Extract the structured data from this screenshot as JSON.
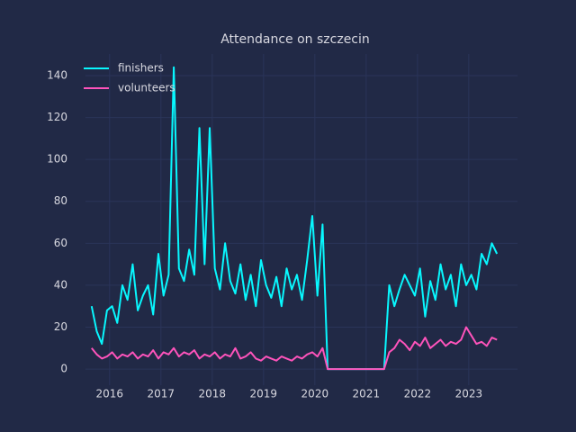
{
  "chart_data": {
    "type": "line",
    "title": "Attendance on szczecin",
    "x": [
      2015.65,
      2015.75,
      2015.85,
      2015.95,
      2016.05,
      2016.15,
      2016.25,
      2016.35,
      2016.45,
      2016.55,
      2016.65,
      2016.75,
      2016.85,
      2016.95,
      2017.05,
      2017.15,
      2017.25,
      2017.35,
      2017.45,
      2017.55,
      2017.65,
      2017.75,
      2017.85,
      2017.95,
      2018.05,
      2018.15,
      2018.25,
      2018.35,
      2018.45,
      2018.55,
      2018.65,
      2018.75,
      2018.85,
      2018.95,
      2019.05,
      2019.15,
      2019.25,
      2019.35,
      2019.45,
      2019.55,
      2019.65,
      2019.75,
      2019.85,
      2019.95,
      2020.05,
      2020.15,
      2020.25,
      2020.35,
      2020.45,
      2020.55,
      2020.65,
      2020.75,
      2020.85,
      2020.95,
      2021.05,
      2021.15,
      2021.25,
      2021.35,
      2021.45,
      2021.55,
      2021.65,
      2021.75,
      2021.85,
      2021.95,
      2022.05,
      2022.15,
      2022.25,
      2022.35,
      2022.45,
      2022.55,
      2022.65,
      2022.75,
      2022.85,
      2022.95,
      2023.05,
      2023.15,
      2023.25,
      2023.35,
      2023.45,
      2023.55
    ],
    "series": [
      {
        "name": "finishers",
        "color": "#08F7FE",
        "values": [
          30,
          18,
          12,
          28,
          30,
          22,
          40,
          33,
          50,
          28,
          35,
          40,
          26,
          55,
          35,
          45,
          144,
          48,
          42,
          57,
          45,
          115,
          50,
          115,
          48,
          38,
          60,
          42,
          36,
          50,
          33,
          45,
          30,
          52,
          40,
          34,
          44,
          30,
          48,
          38,
          45,
          33,
          52,
          73,
          35,
          69,
          0,
          0,
          0,
          0,
          0,
          0,
          0,
          0,
          0,
          0,
          0,
          0,
          40,
          30,
          38,
          45,
          40,
          35,
          48,
          25,
          42,
          33,
          50,
          38,
          45,
          30,
          50,
          40,
          45,
          38,
          55,
          50,
          60,
          55
        ]
      },
      {
        "name": "volunteers",
        "color": "#FE53BB",
        "values": [
          10,
          7,
          5,
          6,
          8,
          5,
          7,
          6,
          8,
          5,
          7,
          6,
          9,
          5,
          8,
          7,
          10,
          6,
          8,
          7,
          9,
          5,
          7,
          6,
          8,
          5,
          7,
          6,
          10,
          5,
          6,
          8,
          5,
          4,
          6,
          5,
          4,
          6,
          5,
          4,
          6,
          5,
          7,
          8,
          6,
          10,
          0,
          0,
          0,
          0,
          0,
          0,
          0,
          0,
          0,
          0,
          0,
          0,
          8,
          10,
          14,
          12,
          9,
          13,
          11,
          15,
          10,
          12,
          14,
          11,
          13,
          12,
          14,
          20,
          16,
          12,
          13,
          11,
          15,
          14
        ]
      }
    ],
    "xlim": [
      2015.53,
      2023.95
    ],
    "xticks": [
      2016,
      2017,
      2018,
      2019,
      2020,
      2021,
      2022,
      2023
    ],
    "ylim": [
      -7.7,
      150.3
    ],
    "yticks": [
      0,
      20,
      40,
      60,
      80,
      100,
      120,
      140
    ],
    "grid": true,
    "legend": "upper-left"
  }
}
